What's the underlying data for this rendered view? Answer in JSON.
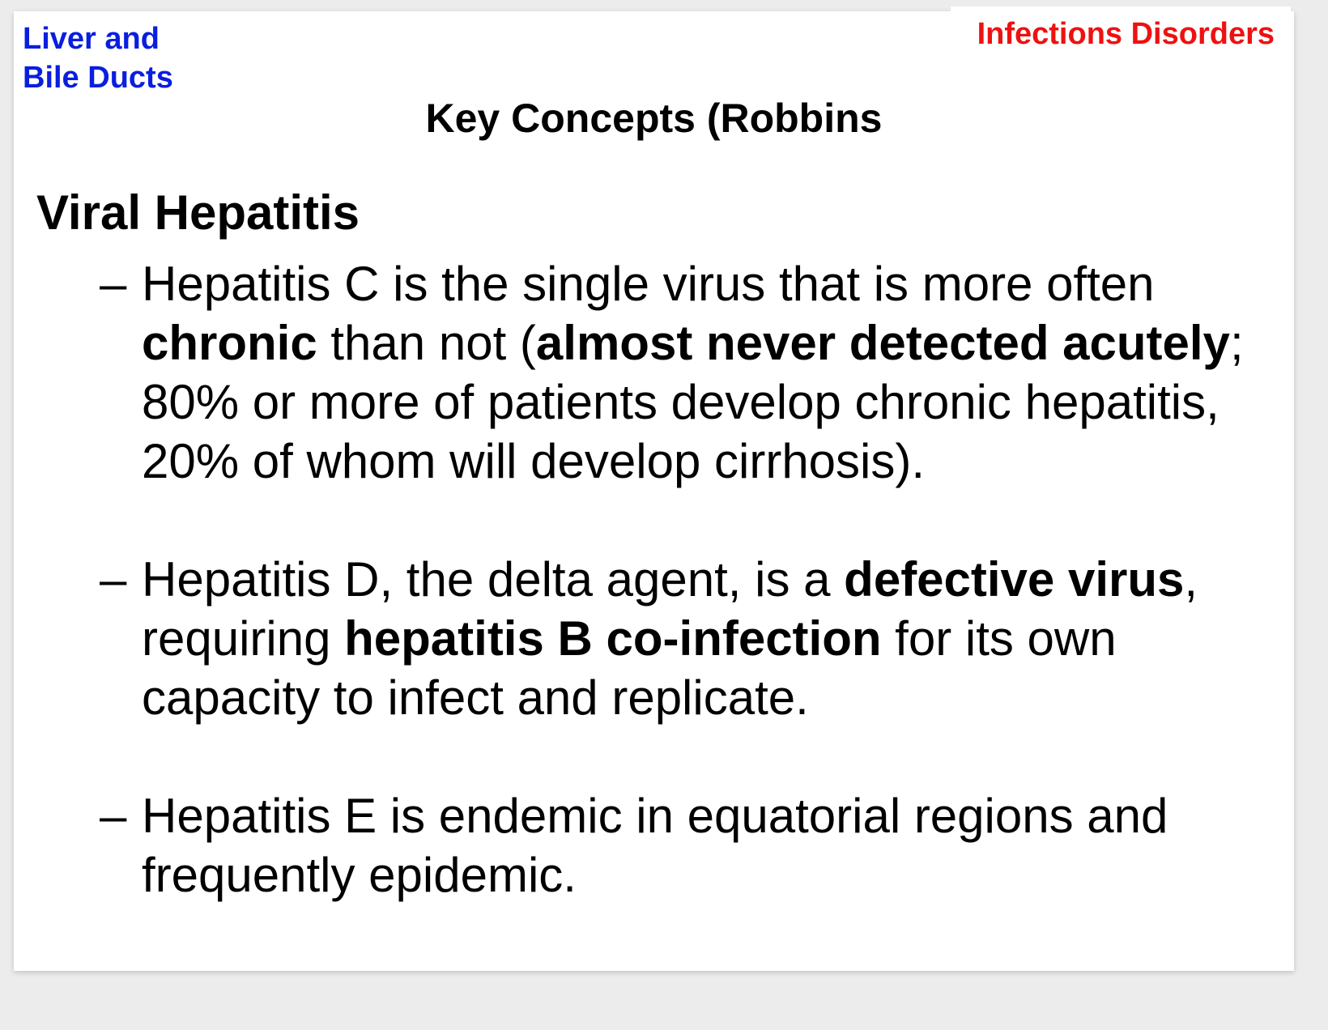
{
  "header": {
    "section_line1": "Liver and",
    "section_line2": "Bile Ducts",
    "category": "Infections Disorders",
    "title": "Key Concepts (Robbins"
  },
  "topic": "Viral Hepatitis",
  "bullet_marker": "–",
  "bullets": [
    {
      "parts": [
        "Hepatitis C is the single virus that is more often ",
        "chronic",
        " than not (",
        "almost never detected acutely",
        "; 80% or more of patients develop chronic hepatitis, 20% of whom will develop cirrhosis)."
      ]
    },
    {
      "parts": [
        "Hepatitis D, the delta agent, is a ",
        "defective virus",
        ", requiring ",
        "hepatitis B co-infection",
        " for its own capacity to infect and replicate."
      ]
    },
    {
      "parts": [
        "Hepatitis E is endemic in equatorial regions and frequently epidemic."
      ]
    }
  ],
  "colors": {
    "section_label": "#0a1ee0",
    "category_label": "#ee1111",
    "text": "#000000",
    "slide_background": "#ffffff",
    "page_background": "#ececec"
  }
}
